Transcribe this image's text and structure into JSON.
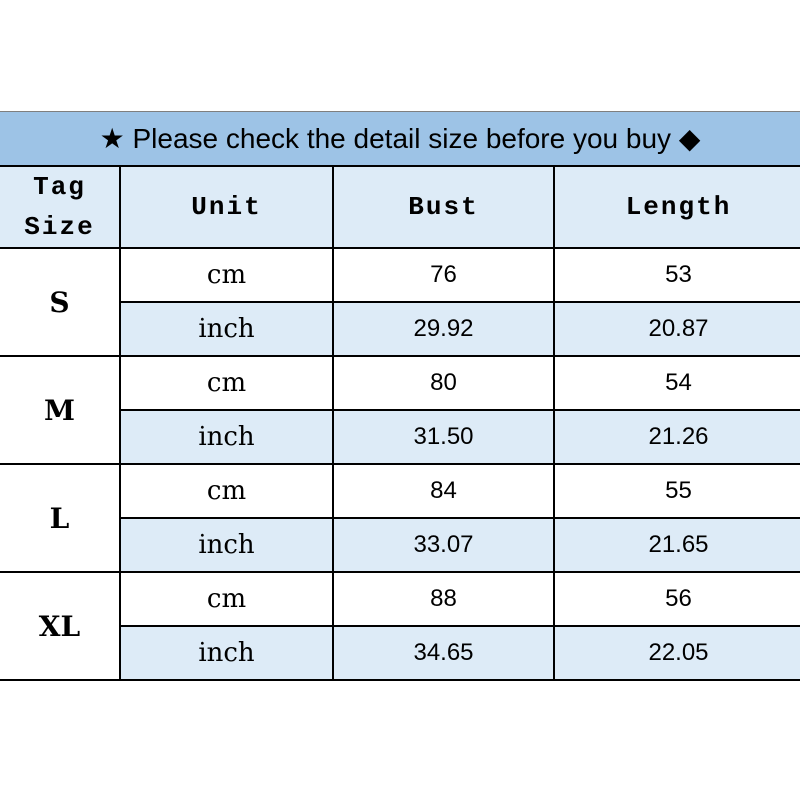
{
  "title": "★ Please check the detail size before you buy ◆",
  "headers": {
    "tag_size": "Tag Size",
    "unit": "Unit",
    "bust": "Bust",
    "length": "Length"
  },
  "rows": [
    {
      "size": "S",
      "cm": {
        "unit": "cm",
        "bust": "76",
        "length": "53"
      },
      "inch": {
        "unit": "inch",
        "bust": "29.92",
        "length": "20.87"
      }
    },
    {
      "size": "M",
      "cm": {
        "unit": "cm",
        "bust": "80",
        "length": "54"
      },
      "inch": {
        "unit": "inch",
        "bust": "31.50",
        "length": "21.26"
      }
    },
    {
      "size": "L",
      "cm": {
        "unit": "cm",
        "bust": "84",
        "length": "55"
      },
      "inch": {
        "unit": "inch",
        "bust": "33.07",
        "length": "21.65"
      }
    },
    {
      "size": "XL",
      "cm": {
        "unit": "cm",
        "bust": "88",
        "length": "56"
      },
      "inch": {
        "unit": "inch",
        "bust": "34.65",
        "length": "22.05"
      }
    }
  ],
  "colors": {
    "title_bg": "#9dc3e6",
    "header_bg": "#ddebf7"
  }
}
